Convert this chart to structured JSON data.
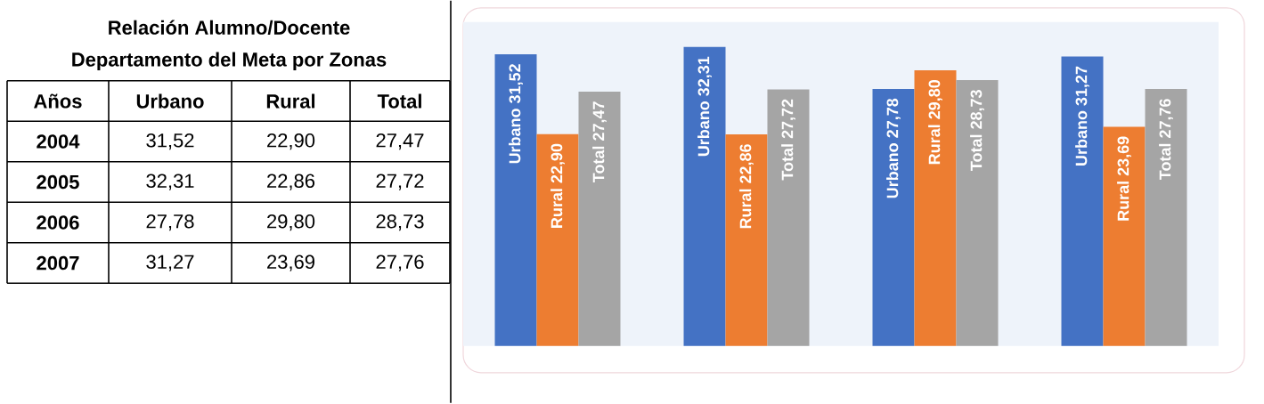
{
  "chart_data": {
    "type": "bar",
    "title": "Relación Alumno/Docente",
    "subtitle": "Departamento del Meta por Zonas",
    "annotations": [
      "Años",
      "2004",
      "2005",
      "2006",
      "2007"
    ],
    "categories": [
      null,
      null,
      null,
      null
    ],
    "series": [
      {
        "name": "Urbano",
        "color": "#4472c4",
        "values": [
          31.52,
          32.31,
          27.78,
          31.27
        ],
        "value_labels": [
          "31,52",
          "32,31",
          "27,78",
          "31,27"
        ]
      },
      {
        "name": "Rural",
        "color": "#ed7d31",
        "values": [
          22.9,
          22.86,
          29.8,
          23.69
        ],
        "value_labels": [
          "22,90",
          "22,86",
          "29,80",
          "23,69"
        ]
      },
      {
        "name": "Total",
        "color": "#a5a5a5",
        "values": [
          27.47,
          27.72,
          28.73,
          27.76
        ],
        "value_labels": [
          "27,47",
          "27,72",
          "28,73",
          "27,76"
        ]
      }
    ],
    "ylim": [
      0,
      35
    ],
    "tick_labels": false
  }
}
